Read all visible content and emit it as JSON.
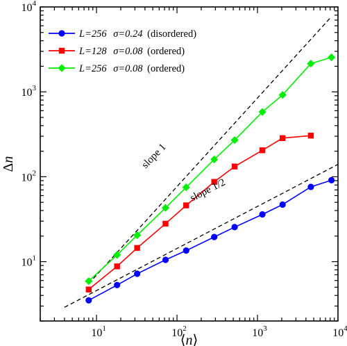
{
  "chart_data": {
    "type": "line",
    "xscale": "log",
    "yscale": "log",
    "xlim": [
      2,
      10000
    ],
    "ylim": [
      2,
      10000
    ],
    "xlabel": {
      "main": "⟨n⟩",
      "variable": "n"
    },
    "ylabel": {
      "prefix": "Δ",
      "variable": "n"
    },
    "xticks": [
      {
        "value": 10,
        "base": "10",
        "exp": "1"
      },
      {
        "value": 100,
        "base": "10",
        "exp": "2"
      },
      {
        "value": 1000,
        "base": "10",
        "exp": "3"
      },
      {
        "value": 10000,
        "base": "10",
        "exp": "4"
      }
    ],
    "yticks": [
      {
        "value": 10,
        "base": "10",
        "exp": "1"
      },
      {
        "value": 100,
        "base": "10",
        "exp": "2"
      },
      {
        "value": 1000,
        "base": "10",
        "exp": "3"
      },
      {
        "value": 10000,
        "base": "10",
        "exp": "4"
      }
    ],
    "legend": {
      "position": "top-left"
    },
    "series": [
      {
        "name": "L=256 σ=0.24 (disordered)",
        "legend_parts": {
          "L": "L=256",
          "sigma": "σ=0.24",
          "state": "(disordered)"
        },
        "color": "#0000ff",
        "marker": "circle",
        "x": [
          8,
          18,
          32,
          72,
          130,
          290,
          520,
          1150,
          2050,
          4600,
          8300
        ],
        "y": [
          3.5,
          5.3,
          7.2,
          10.5,
          13.5,
          19.5,
          25.5,
          36,
          47,
          76,
          91
        ]
      },
      {
        "name": "L=128 σ=0.08 (ordered)",
        "legend_parts": {
          "L": "L=128",
          "sigma": "σ=0.08",
          "state": "(ordered)"
        },
        "color": "#ff0000",
        "marker": "square",
        "x": [
          8,
          18,
          32,
          72,
          130,
          290,
          520,
          1150,
          2050,
          4600
        ],
        "y": [
          4.7,
          8.8,
          14.5,
          28,
          46,
          87,
          132,
          205,
          285,
          305
        ]
      },
      {
        "name": "L=256 σ=0.08 (ordered)",
        "legend_parts": {
          "L": "L=256",
          "sigma": "σ=0.08",
          "state": "(ordered)"
        },
        "color": "#00ee00",
        "marker": "diamond",
        "x": [
          8,
          18,
          32,
          72,
          130,
          290,
          520,
          1150,
          2050,
          4600,
          8300
        ],
        "y": [
          5.9,
          12,
          20.5,
          43,
          75,
          160,
          270,
          580,
          920,
          2150,
          2550
        ]
      }
    ],
    "reference_lines": [
      {
        "label": "slope 1",
        "x": [
          8,
          8000
        ],
        "y": [
          5.5,
          7400
        ]
      },
      {
        "label": "slope 1/2",
        "x": [
          4,
          10000
        ],
        "y": [
          2.9,
          140
        ]
      }
    ]
  }
}
